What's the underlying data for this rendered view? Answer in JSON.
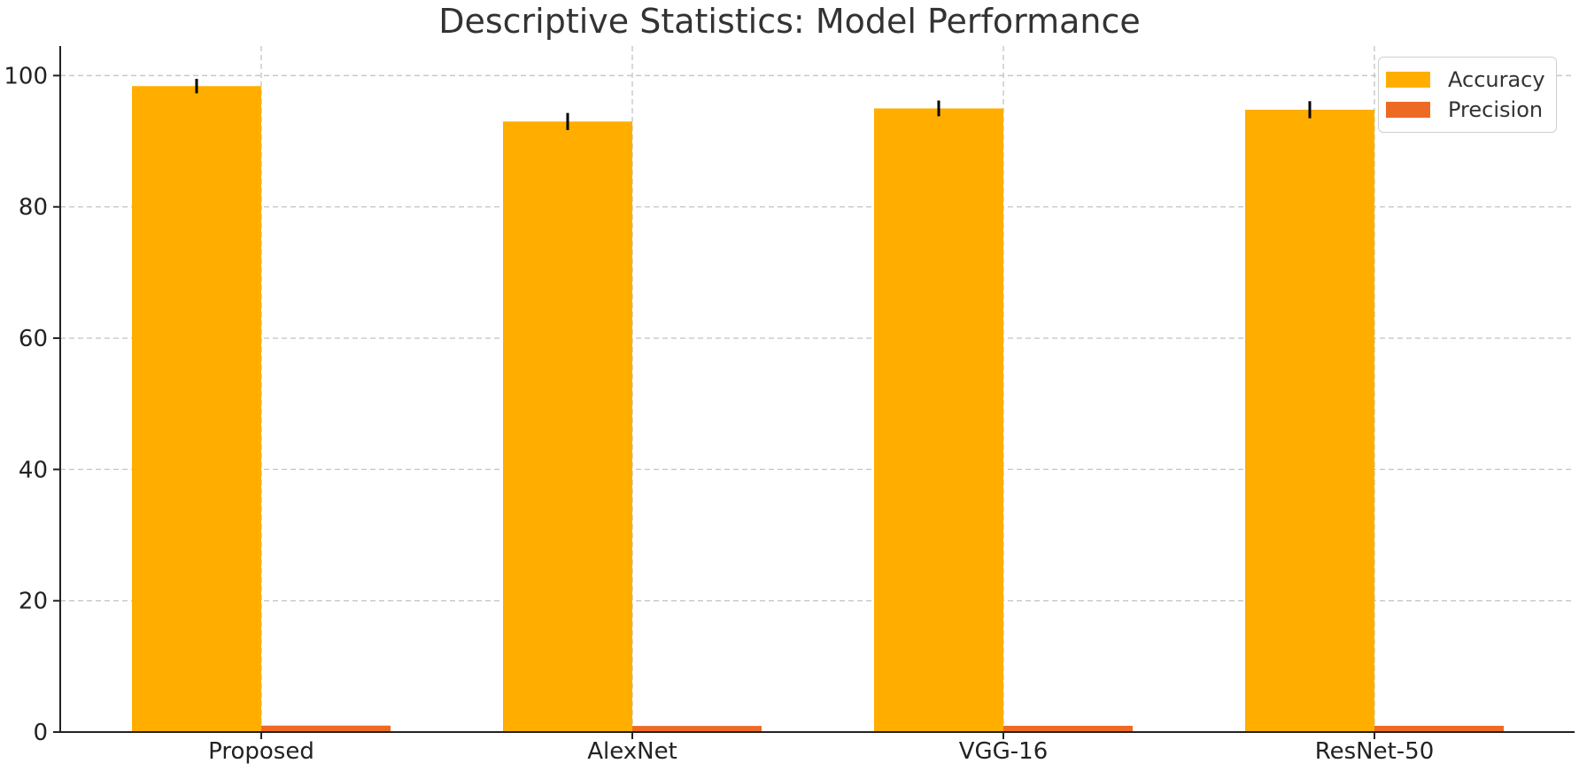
{
  "chart_data": {
    "type": "bar",
    "title": "Descriptive Statistics: Model Performance",
    "xlabel": "",
    "ylabel": "",
    "categories": [
      "Proposed",
      "AlexNet",
      "VGG-16",
      "ResNet-50"
    ],
    "series": [
      {
        "name": "Accuracy",
        "color": "#FFAE00",
        "values": [
          98.4,
          93.0,
          95.0,
          94.8
        ],
        "error": [
          1.1,
          1.3,
          1.2,
          1.3
        ]
      },
      {
        "name": "Precision",
        "color": "#EE6A24",
        "values": [
          0.98,
          0.93,
          0.95,
          0.95
        ],
        "error": [
          0,
          0,
          0,
          0
        ]
      }
    ],
    "yticks": [
      0,
      20,
      40,
      60,
      80,
      100
    ],
    "ylim": [
      0,
      104.5
    ],
    "grid": true,
    "legend_position": "top-right"
  }
}
